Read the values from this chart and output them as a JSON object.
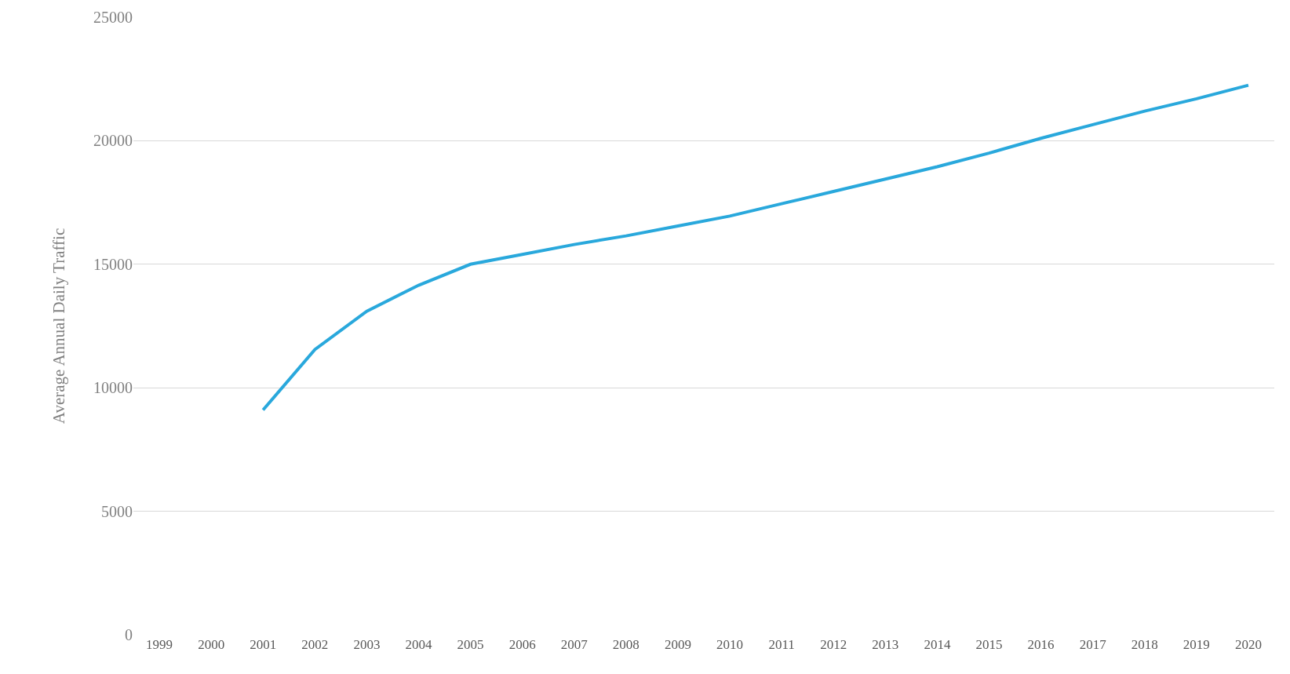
{
  "chart_data": {
    "type": "line",
    "ylabel": "Average Annual Daily Traffic",
    "categories": [
      "1999",
      "2000",
      "2001",
      "2002",
      "2003",
      "2004",
      "2005",
      "2006",
      "2007",
      "2008",
      "2009",
      "2010",
      "2011",
      "2012",
      "2013",
      "2014",
      "2015",
      "2016",
      "2017",
      "2018",
      "2019",
      "2020"
    ],
    "series": [
      {
        "color": "#29a8dc",
        "values": [
          null,
          null,
          9100,
          11550,
          13100,
          14150,
          15000,
          15400,
          15800,
          16150,
          16550,
          16950,
          17450,
          17950,
          18450,
          18950,
          19500,
          20100,
          20650,
          21200,
          21700,
          22250
        ]
      }
    ],
    "ylim": [
      0,
      25000
    ],
    "yticks": [
      0,
      5000,
      10000,
      15000,
      20000,
      25000
    ],
    "grid": "y",
    "marker": "none",
    "line_style": "solid"
  }
}
